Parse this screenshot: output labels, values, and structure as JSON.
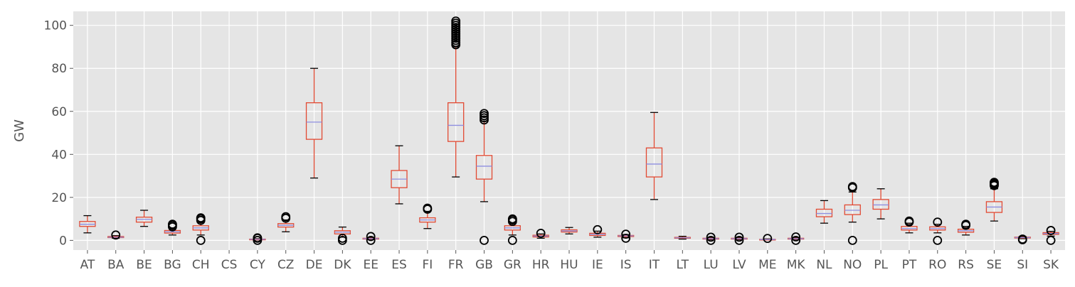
{
  "chart_data": {
    "type": "box",
    "title": "",
    "ylabel": "GW",
    "xlabel": "",
    "ylim": [
      -4.5,
      106.5
    ],
    "yticks": [
      0,
      20,
      40,
      60,
      80,
      100
    ],
    "grid": true,
    "style": "ggplot",
    "colors": {
      "background": "#e5e5e5",
      "grid": "#ffffff",
      "box": "#e24a33",
      "median": "#8e8ee0",
      "whisker": "#e24a33",
      "cap": "#000000",
      "flier": "#000000",
      "text": "#555555"
    },
    "categories": [
      "AT",
      "BA",
      "BE",
      "BG",
      "CH",
      "CS",
      "CY",
      "CZ",
      "DE",
      "DK",
      "EE",
      "ES",
      "FI",
      "FR",
      "GB",
      "GR",
      "HR",
      "HU",
      "IE",
      "IS",
      "IT",
      "LT",
      "LU",
      "LV",
      "ME",
      "MK",
      "NL",
      "NO",
      "PL",
      "PT",
      "RO",
      "RS",
      "SE",
      "SI",
      "SK"
    ],
    "boxes": [
      {
        "name": "AT",
        "whislo": 3.5,
        "q1": 6.5,
        "med": 7.5,
        "q3": 8.8,
        "whishi": 11.5,
        "fliers": []
      },
      {
        "name": "BA",
        "whislo": 1.0,
        "q1": 1.3,
        "med": 1.5,
        "q3": 1.8,
        "whishi": 2.2,
        "fliers": [
          2.5
        ]
      },
      {
        "name": "BE",
        "whislo": 6.5,
        "q1": 8.5,
        "med": 9.8,
        "q3": 10.8,
        "whishi": 14.0,
        "fliers": []
      },
      {
        "name": "BG",
        "whislo": 2.5,
        "q1": 3.4,
        "med": 4.0,
        "q3": 4.6,
        "whishi": 5.8,
        "fliers": [
          6.3,
          7.0,
          7.5
        ]
      },
      {
        "name": "CH",
        "whislo": 2.5,
        "q1": 4.8,
        "med": 5.8,
        "q3": 6.8,
        "whishi": 8.5,
        "fliers": [
          0,
          9.3,
          10.0,
          10.5
        ]
      },
      {
        "name": "CS",
        "whislo": null,
        "q1": null,
        "med": null,
        "q3": null,
        "whishi": null,
        "fliers": []
      },
      {
        "name": "CY",
        "whislo": 0.2,
        "q1": 0.4,
        "med": 0.5,
        "q3": 0.6,
        "whishi": 0.8,
        "fliers": [
          0,
          1.0,
          1.2
        ]
      },
      {
        "name": "CZ",
        "whislo": 4.0,
        "q1": 6.2,
        "med": 7.0,
        "q3": 7.8,
        "whishi": 9.5,
        "fliers": [
          10.3,
          11.0
        ]
      },
      {
        "name": "DE",
        "whislo": 29.0,
        "q1": 47.0,
        "med": 55.0,
        "q3": 64.0,
        "whishi": 80.0,
        "fliers": []
      },
      {
        "name": "DK",
        "whislo": 1.5,
        "q1": 3.0,
        "med": 3.8,
        "q3": 4.5,
        "whishi": 6.2,
        "fliers": [
          0,
          1.0
        ]
      },
      {
        "name": "EE",
        "whislo": 0.3,
        "q1": 0.6,
        "med": 0.8,
        "q3": 1.0,
        "whishi": 1.3,
        "fliers": [
          0,
          1.8
        ]
      },
      {
        "name": "ES",
        "whislo": 17.0,
        "q1": 24.5,
        "med": 28.5,
        "q3": 32.5,
        "whishi": 44.0,
        "fliers": []
      },
      {
        "name": "FI",
        "whislo": 5.5,
        "q1": 8.5,
        "med": 9.5,
        "q3": 10.5,
        "whishi": 13.5,
        "fliers": [
          14.5,
          15.0
        ]
      },
      {
        "name": "FR",
        "whislo": 29.5,
        "q1": 46.0,
        "med": 53.5,
        "q3": 64.0,
        "whishi": 90.0,
        "fliers": [
          91,
          92,
          93,
          94,
          95,
          96,
          97,
          98,
          99,
          100,
          101,
          102
        ]
      },
      {
        "name": "GB",
        "whislo": 18.0,
        "q1": 28.5,
        "med": 34.5,
        "q3": 39.5,
        "whishi": 55.5,
        "fliers": [
          0,
          56,
          57,
          58,
          59
        ]
      },
      {
        "name": "GR",
        "whislo": 2.5,
        "q1": 4.8,
        "med": 5.8,
        "q3": 6.8,
        "whishi": 8.0,
        "fliers": [
          0,
          8.8,
          9.5,
          10.0
        ]
      },
      {
        "name": "HR",
        "whislo": 1.0,
        "q1": 1.6,
        "med": 2.0,
        "q3": 2.4,
        "whishi": 3.0,
        "fliers": [
          3.3
        ]
      },
      {
        "name": "HU",
        "whislo": 3.0,
        "q1": 3.9,
        "med": 4.4,
        "q3": 4.9,
        "whishi": 6.0,
        "fliers": []
      },
      {
        "name": "IE",
        "whislo": 1.5,
        "q1": 2.3,
        "med": 2.8,
        "q3": 3.3,
        "whishi": 4.3,
        "fliers": [
          5.0
        ]
      },
      {
        "name": "IS",
        "whislo": 1.2,
        "q1": 1.8,
        "med": 2.1,
        "q3": 2.3,
        "whishi": 2.7,
        "fliers": [
          1.0,
          2.9
        ]
      },
      {
        "name": "IT",
        "whislo": 19.0,
        "q1": 29.5,
        "med": 35.5,
        "q3": 43.0,
        "whishi": 59.5,
        "fliers": []
      },
      {
        "name": "LT",
        "whislo": 0.6,
        "q1": 1.0,
        "med": 1.2,
        "q3": 1.4,
        "whishi": 1.9,
        "fliers": []
      },
      {
        "name": "LU",
        "whislo": 0.3,
        "q1": 0.6,
        "med": 0.8,
        "q3": 1.0,
        "whishi": 1.3,
        "fliers": [
          0,
          1.5
        ]
      },
      {
        "name": "LV",
        "whislo": 0.3,
        "q1": 0.6,
        "med": 0.8,
        "q3": 1.0,
        "whishi": 1.3,
        "fliers": [
          0,
          1.5
        ]
      },
      {
        "name": "ME",
        "whislo": 0.2,
        "q1": 0.3,
        "med": 0.4,
        "q3": 0.5,
        "whishi": 0.7,
        "fliers": [
          0.9
        ]
      },
      {
        "name": "MK",
        "whislo": 0.4,
        "q1": 0.6,
        "med": 0.8,
        "q3": 1.0,
        "whishi": 1.3,
        "fliers": [
          0,
          1.6
        ]
      },
      {
        "name": "NL",
        "whislo": 8.0,
        "q1": 11.0,
        "med": 12.5,
        "q3": 14.5,
        "whishi": 18.5,
        "fliers": []
      },
      {
        "name": "NO",
        "whislo": 8.5,
        "q1": 12.0,
        "med": 14.0,
        "q3": 16.5,
        "whishi": 22.5,
        "fliers": [
          0,
          24.5,
          25.0
        ]
      },
      {
        "name": "PL",
        "whislo": 10.0,
        "q1": 14.5,
        "med": 16.5,
        "q3": 19.0,
        "whishi": 24.0,
        "fliers": []
      },
      {
        "name": "PT",
        "whislo": 3.5,
        "q1": 4.8,
        "med": 5.5,
        "q3": 6.5,
        "whishi": 8.0,
        "fliers": [
          8.5,
          9.0
        ]
      },
      {
        "name": "RO",
        "whislo": 3.5,
        "q1": 4.8,
        "med": 5.5,
        "q3": 6.3,
        "whishi": 7.5,
        "fliers": [
          0,
          8.5
        ]
      },
      {
        "name": "RS",
        "whislo": 2.5,
        "q1": 3.8,
        "med": 4.5,
        "q3": 5.2,
        "whishi": 6.5,
        "fliers": [
          7.0,
          7.5
        ]
      },
      {
        "name": "SE",
        "whislo": 9.0,
        "q1": 13.0,
        "med": 15.5,
        "q3": 18.0,
        "whishi": 24.0,
        "fliers": [
          25.5,
          26.0,
          26.5,
          27.0
        ]
      },
      {
        "name": "SI",
        "whislo": 0.8,
        "q1": 1.1,
        "med": 1.3,
        "q3": 1.5,
        "whishi": 1.8,
        "fliers": [
          0.3,
          0.6
        ]
      },
      {
        "name": "SK",
        "whislo": 2.0,
        "q1": 2.8,
        "med": 3.2,
        "q3": 3.6,
        "whishi": 4.2,
        "fliers": [
          0,
          4.6
        ]
      }
    ]
  }
}
